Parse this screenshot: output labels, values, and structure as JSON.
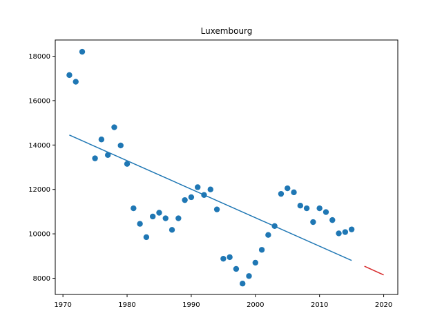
{
  "chart_data": {
    "type": "scatter",
    "title": "Luxembourg",
    "xlabel": "",
    "ylabel": "",
    "xlim": [
      1968.8,
      2022.2
    ],
    "ylim": [
      7270,
      18730
    ],
    "xticks": [
      1970,
      1980,
      1990,
      2000,
      2010,
      2020
    ],
    "yticks": [
      8000,
      10000,
      12000,
      14000,
      16000,
      18000
    ],
    "grid": false,
    "colors": {
      "points": "#1f77b4",
      "fit": "#1f77b4",
      "forecast": "#d62728"
    },
    "series": [
      {
        "kind": "scatter",
        "x": [
          1971,
          1972,
          1973,
          1975,
          1976,
          1977,
          1978,
          1979,
          1980,
          1981,
          1982,
          1983,
          1984,
          1985,
          1986,
          1987,
          1988,
          1989,
          1990,
          1991,
          1992,
          1993,
          1994,
          1995,
          1996,
          1997,
          1998,
          1999,
          2000,
          2001,
          2002,
          2003,
          2004,
          2005,
          2006,
          2007,
          2008,
          2009,
          2010,
          2011,
          2012,
          2013,
          2014,
          2015
        ],
        "y": [
          17150,
          16850,
          18200,
          13400,
          14250,
          13550,
          14800,
          13980,
          13150,
          11150,
          10450,
          9850,
          10780,
          10950,
          10700,
          10180,
          10700,
          11520,
          11650,
          12100,
          11750,
          12000,
          11100,
          8880,
          8950,
          8420,
          7760,
          8100,
          8700,
          9280,
          9950,
          10350,
          11800,
          12050,
          11870,
          11270,
          11150,
          10530,
          11150,
          10980,
          10620,
          10020,
          10080,
          10200
        ]
      },
      {
        "kind": "line",
        "x": [
          1971,
          2015
        ],
        "y": [
          14450,
          8800
        ]
      },
      {
        "kind": "line",
        "x": [
          2017,
          2020
        ],
        "y": [
          8540,
          8150
        ]
      }
    ]
  }
}
